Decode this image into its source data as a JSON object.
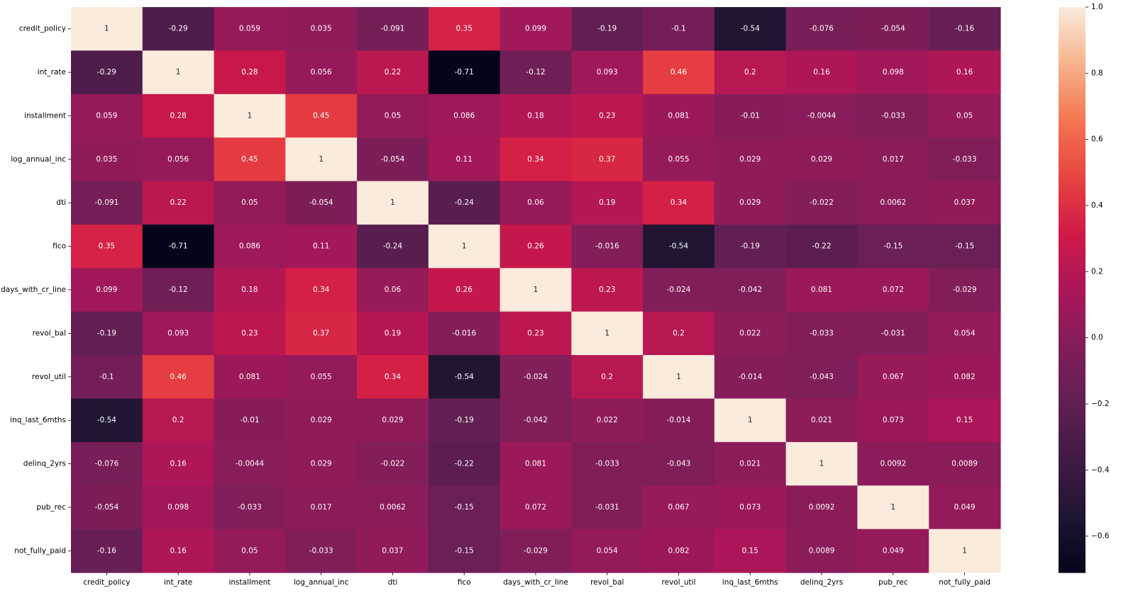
{
  "chart_data": {
    "type": "heatmap",
    "title": "",
    "xlabel": "",
    "ylabel": "",
    "rows": [
      "credit_policy",
      "int_rate",
      "installment",
      "log_annual_inc",
      "dti",
      "fico",
      "days_with_cr_line",
      "revol_bal",
      "revol_util",
      "inq_last_6mths",
      "delinq_2yrs",
      "pub_rec",
      "not_fully_paid"
    ],
    "cols": [
      "credit_policy",
      "int_rate",
      "installment",
      "log_annual_inc",
      "dti",
      "fico",
      "days_with_cr_line",
      "revol_bal",
      "revol_util",
      "inq_last_6mths",
      "delinq_2yrs",
      "pub_rec",
      "not_fully_paid"
    ],
    "values": [
      [
        "1",
        "-0.29",
        "0.059",
        "0.035",
        "-0.091",
        "0.35",
        "0.099",
        "-0.19",
        "-0.1",
        "-0.54",
        "-0.076",
        "-0.054",
        "-0.16"
      ],
      [
        "-0.29",
        "1",
        "0.28",
        "0.056",
        "0.22",
        "-0.71",
        "-0.12",
        "0.093",
        "0.46",
        "0.2",
        "0.16",
        "0.098",
        "0.16"
      ],
      [
        "0.059",
        "0.28",
        "1",
        "0.45",
        "0.05",
        "0.086",
        "0.18",
        "0.23",
        "0.081",
        "-0.01",
        "-0.0044",
        "-0.033",
        "0.05"
      ],
      [
        "0.035",
        "0.056",
        "0.45",
        "1",
        "-0.054",
        "0.11",
        "0.34",
        "0.37",
        "0.055",
        "0.029",
        "0.029",
        "0.017",
        "-0.033"
      ],
      [
        "-0.091",
        "0.22",
        "0.05",
        "-0.054",
        "1",
        "-0.24",
        "0.06",
        "0.19",
        "0.34",
        "0.029",
        "-0.022",
        "0.0062",
        "0.037"
      ],
      [
        "0.35",
        "-0.71",
        "0.086",
        "0.11",
        "-0.24",
        "1",
        "0.26",
        "-0.016",
        "-0.54",
        "-0.19",
        "-0.22",
        "-0.15",
        "-0.15"
      ],
      [
        "0.099",
        "-0.12",
        "0.18",
        "0.34",
        "0.06",
        "0.26",
        "1",
        "0.23",
        "-0.024",
        "-0.042",
        "0.081",
        "0.072",
        "-0.029"
      ],
      [
        "-0.19",
        "0.093",
        "0.23",
        "0.37",
        "0.19",
        "-0.016",
        "0.23",
        "1",
        "0.2",
        "0.022",
        "-0.033",
        "-0.031",
        "0.054"
      ],
      [
        "-0.1",
        "0.46",
        "0.081",
        "0.055",
        "0.34",
        "-0.54",
        "-0.024",
        "0.2",
        "1",
        "-0.014",
        "-0.043",
        "0.067",
        "0.082"
      ],
      [
        "-0.54",
        "0.2",
        "-0.01",
        "0.029",
        "0.029",
        "-0.19",
        "-0.042",
        "0.022",
        "-0.014",
        "1",
        "0.021",
        "0.073",
        "0.15"
      ],
      [
        "-0.076",
        "0.16",
        "-0.0044",
        "0.029",
        "-0.022",
        "-0.22",
        "0.081",
        "-0.033",
        "-0.043",
        "0.021",
        "1",
        "0.0092",
        "0.0089"
      ],
      [
        "-0.054",
        "0.098",
        "-0.033",
        "0.017",
        "0.0062",
        "-0.15",
        "0.072",
        "-0.031",
        "0.067",
        "0.073",
        "0.0092",
        "1",
        "0.049"
      ],
      [
        "-0.16",
        "0.16",
        "0.05",
        "-0.033",
        "0.037",
        "-0.15",
        "-0.029",
        "0.054",
        "0.082",
        "0.15",
        "0.0089",
        "0.049",
        "1"
      ]
    ],
    "colorbar": {
      "min": -0.71,
      "max": 1.0,
      "colormap": "rocket",
      "ticks": [
        1.0,
        0.8,
        0.6,
        0.4,
        0.2,
        0.0,
        -0.2,
        -0.4,
        -0.6
      ],
      "tick_labels": [
        "1.0",
        "0.8",
        "0.6",
        "0.4",
        "0.2",
        "0.0",
        "−0.2",
        "−0.4",
        "−0.6"
      ]
    }
  }
}
